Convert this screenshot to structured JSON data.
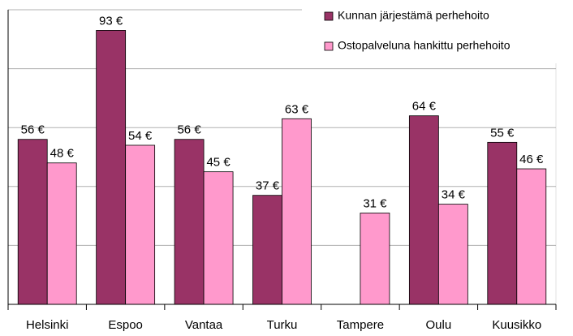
{
  "chart_data": {
    "type": "bar",
    "categories": [
      "Helsinki",
      "Espoo",
      "Vantaa",
      "Turku",
      "Tampere",
      "Oulu",
      "Kuusikko"
    ],
    "series": [
      {
        "name": "Kunnan järjestämä perhehoito",
        "color": "#993366",
        "values": [
          56,
          93,
          56,
          37,
          null,
          64,
          55
        ],
        "value_labels": [
          "56 €",
          "93 €",
          "56 €",
          "37 €",
          null,
          "64 €",
          "55 €"
        ]
      },
      {
        "name": "Ostopalveluna hankittu perhehoito",
        "color": "#ff99cc",
        "values": [
          48,
          54,
          45,
          63,
          31,
          34,
          46
        ],
        "value_labels": [
          "48 €",
          "54 €",
          "45 €",
          "63 €",
          "31 €",
          "34 €",
          "46 €"
        ]
      }
    ],
    "ylim": [
      0,
      100
    ],
    "yticks": [
      0,
      20,
      40,
      60,
      80,
      100
    ],
    "grid": true,
    "legend": "top-right"
  }
}
